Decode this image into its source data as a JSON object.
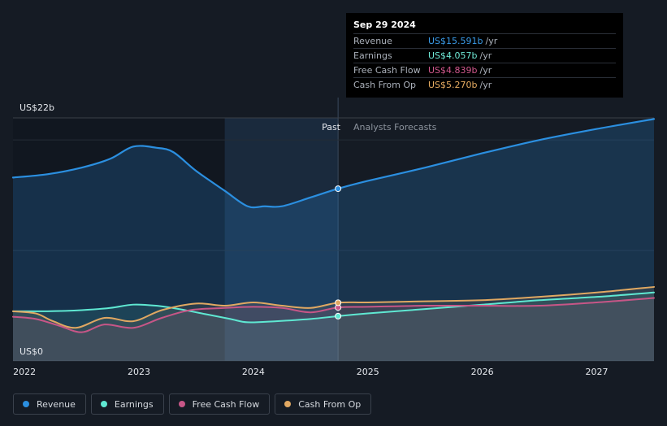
{
  "colors": {
    "revenue": "#2b8fe0",
    "earnings": "#5fe8d2",
    "fcf": "#c75687",
    "cfo": "#e0a862",
    "background": "#151b24"
  },
  "tooltip": {
    "date": "Sep 29 2024",
    "rows": [
      {
        "label": "Revenue",
        "value": "US$15.591b",
        "unit": "/yr",
        "color": "#3a9be8"
      },
      {
        "label": "Earnings",
        "value": "US$4.057b",
        "unit": "/yr",
        "color": "#6fe9d6"
      },
      {
        "label": "Free Cash Flow",
        "value": "US$4.839b",
        "unit": "/yr",
        "color": "#d0578c"
      },
      {
        "label": "Cash From Op",
        "value": "US$5.270b",
        "unit": "/yr",
        "color": "#e8ad62"
      }
    ]
  },
  "legend": [
    {
      "label": "Revenue",
      "color": "#2b8fe0"
    },
    {
      "label": "Earnings",
      "color": "#5fe8d2"
    },
    {
      "label": "Free Cash Flow",
      "color": "#c75687"
    },
    {
      "label": "Cash From Op",
      "color": "#e0a862"
    }
  ],
  "chart_data": {
    "type": "line",
    "y_max_label": "US$22b",
    "y_min_label": "US$0",
    "ylim": [
      0,
      22
    ],
    "xlim": [
      2021.9,
      2027.5
    ],
    "x_ticks": [
      2022,
      2023,
      2024,
      2025,
      2026,
      2027
    ],
    "x_tick_labels": [
      "2022",
      "2023",
      "2024",
      "2025",
      "2026",
      "2027"
    ],
    "past_label": "Past",
    "forecast_label": "Analysts Forecasts",
    "past_end": 2024.74,
    "highlight_start": 2023.75,
    "series": [
      {
        "name": "Revenue",
        "key": "revenue",
        "points": [
          [
            2021.9,
            16.6
          ],
          [
            2022.2,
            16.9
          ],
          [
            2022.5,
            17.5
          ],
          [
            2022.75,
            18.3
          ],
          [
            2022.95,
            19.4
          ],
          [
            2023.15,
            19.3
          ],
          [
            2023.3,
            18.9
          ],
          [
            2023.5,
            17.2
          ],
          [
            2023.75,
            15.4
          ],
          [
            2023.95,
            14.0
          ],
          [
            2024.1,
            14.0
          ],
          [
            2024.25,
            14.0
          ],
          [
            2024.5,
            14.8
          ],
          [
            2024.74,
            15.591
          ],
          [
            2025.0,
            16.3
          ],
          [
            2025.5,
            17.5
          ],
          [
            2026.0,
            18.8
          ],
          [
            2026.5,
            20.0
          ],
          [
            2027.0,
            21.0
          ],
          [
            2027.5,
            21.9
          ]
        ]
      },
      {
        "name": "Earnings",
        "key": "earnings",
        "points": [
          [
            2021.9,
            4.5
          ],
          [
            2022.2,
            4.5
          ],
          [
            2022.5,
            4.6
          ],
          [
            2022.75,
            4.8
          ],
          [
            2022.95,
            5.1
          ],
          [
            2023.15,
            5.0
          ],
          [
            2023.35,
            4.7
          ],
          [
            2023.6,
            4.2
          ],
          [
            2023.8,
            3.8
          ],
          [
            2023.95,
            3.5
          ],
          [
            2024.2,
            3.6
          ],
          [
            2024.5,
            3.8
          ],
          [
            2024.74,
            4.057
          ],
          [
            2025.0,
            4.3
          ],
          [
            2025.5,
            4.7
          ],
          [
            2026.0,
            5.1
          ],
          [
            2026.5,
            5.5
          ],
          [
            2027.0,
            5.8
          ],
          [
            2027.5,
            6.2
          ]
        ]
      },
      {
        "name": "Free Cash Flow",
        "key": "fcf",
        "points": [
          [
            2021.9,
            4.0
          ],
          [
            2022.1,
            3.8
          ],
          [
            2022.3,
            3.2
          ],
          [
            2022.5,
            2.6
          ],
          [
            2022.7,
            3.3
          ],
          [
            2022.95,
            3.0
          ],
          [
            2023.2,
            3.9
          ],
          [
            2023.45,
            4.6
          ],
          [
            2023.75,
            4.8
          ],
          [
            2024.0,
            4.9
          ],
          [
            2024.25,
            4.8
          ],
          [
            2024.5,
            4.4
          ],
          [
            2024.74,
            4.839
          ],
          [
            2025.0,
            4.9
          ],
          [
            2025.5,
            5.0
          ],
          [
            2026.0,
            5.0
          ],
          [
            2026.5,
            5.0
          ],
          [
            2027.0,
            5.3
          ],
          [
            2027.5,
            5.7
          ]
        ]
      },
      {
        "name": "Cash From Op",
        "key": "cfo",
        "points": [
          [
            2021.9,
            4.5
          ],
          [
            2022.1,
            4.3
          ],
          [
            2022.25,
            3.6
          ],
          [
            2022.45,
            3.0
          ],
          [
            2022.7,
            3.9
          ],
          [
            2022.95,
            3.6
          ],
          [
            2023.2,
            4.6
          ],
          [
            2023.5,
            5.2
          ],
          [
            2023.75,
            5.0
          ],
          [
            2024.0,
            5.3
          ],
          [
            2024.25,
            5.0
          ],
          [
            2024.5,
            4.8
          ],
          [
            2024.74,
            5.27
          ],
          [
            2025.0,
            5.3
          ],
          [
            2025.5,
            5.4
          ],
          [
            2026.0,
            5.5
          ],
          [
            2026.5,
            5.8
          ],
          [
            2027.0,
            6.2
          ],
          [
            2027.5,
            6.7
          ]
        ]
      }
    ]
  }
}
